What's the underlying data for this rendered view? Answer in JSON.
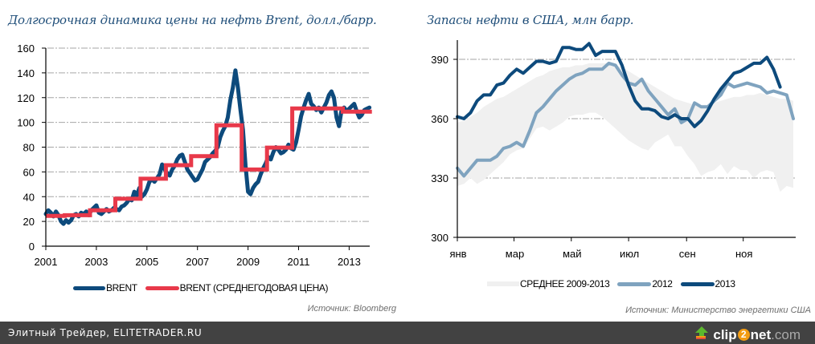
{
  "colors": {
    "brent": "#0d4a7c",
    "brent_avg": "#e8394a",
    "y2012": "#7fa3bf",
    "y2013": "#0d4a7c",
    "avg_band": "#f0f0f0",
    "title": "#1f4e79",
    "grid": "#a6a6a6",
    "footer_bg": "#424242"
  },
  "footer": {
    "site_label": "Элитный Трейдер, ELITETRADER.RU",
    "logo": {
      "part1": "clip",
      "part2": "2",
      "part3": "net",
      "part4": ".com",
      "icon": "up-arrow-icon"
    }
  },
  "chart_data": [
    {
      "type": "line",
      "title": "Долгосрочная динамика цены на нефть Brent, долл./барр.",
      "xlabel": "",
      "ylabel": "",
      "ylim": [
        0,
        160
      ],
      "xlim": [
        2001,
        2013.9
      ],
      "yticks": [
        0,
        20,
        40,
        60,
        80,
        100,
        120,
        140,
        160
      ],
      "xticks": [
        "2001",
        "2003",
        "2005",
        "2007",
        "2009",
        "2011",
        "2013"
      ],
      "grid": true,
      "legend_position": "bottom",
      "source": "Источник: Bloomberg",
      "series": [
        {
          "name": "BRENT",
          "x": [
            2001.0,
            2001.1,
            2001.2,
            2001.3,
            2001.4,
            2001.5,
            2001.6,
            2001.7,
            2001.8,
            2001.9,
            2002.0,
            2002.1,
            2002.2,
            2002.3,
            2002.4,
            2002.5,
            2002.6,
            2002.7,
            2002.8,
            2002.9,
            2003.0,
            2003.1,
            2003.2,
            2003.3,
            2003.4,
            2003.5,
            2003.6,
            2003.7,
            2003.8,
            2003.9,
            2004.0,
            2004.1,
            2004.2,
            2004.3,
            2004.4,
            2004.5,
            2004.6,
            2004.7,
            2004.8,
            2004.9,
            2005.0,
            2005.1,
            2005.2,
            2005.3,
            2005.4,
            2005.5,
            2005.6,
            2005.7,
            2005.8,
            2005.9,
            2006.0,
            2006.1,
            2006.2,
            2006.3,
            2006.4,
            2006.5,
            2006.6,
            2006.7,
            2006.8,
            2006.9,
            2007.0,
            2007.1,
            2007.2,
            2007.3,
            2007.4,
            2007.5,
            2007.6,
            2007.7,
            2007.8,
            2007.9,
            2008.0,
            2008.1,
            2008.2,
            2008.3,
            2008.4,
            2008.5,
            2008.6,
            2008.7,
            2008.8,
            2008.9,
            2009.0,
            2009.1,
            2009.2,
            2009.3,
            2009.4,
            2009.5,
            2009.6,
            2009.7,
            2009.8,
            2009.9,
            2010.0,
            2010.1,
            2010.2,
            2010.3,
            2010.4,
            2010.5,
            2010.6,
            2010.7,
            2010.8,
            2010.9,
            2011.0,
            2011.1,
            2011.2,
            2011.3,
            2011.4,
            2011.5,
            2011.6,
            2011.7,
            2011.8,
            2011.9,
            2012.0,
            2012.1,
            2012.2,
            2012.3,
            2012.4,
            2012.5,
            2012.6,
            2012.7,
            2012.8,
            2012.9,
            2013.0,
            2013.1,
            2013.2,
            2013.3,
            2013.4,
            2013.5,
            2013.6,
            2013.7,
            2013.8
          ],
          "values": [
            26,
            29,
            27,
            24,
            28,
            25,
            20,
            18,
            21,
            19,
            21,
            25,
            26,
            24,
            27,
            26,
            28,
            25,
            29,
            31,
            33,
            27,
            26,
            28,
            30,
            28,
            29,
            31,
            30,
            29,
            32,
            33,
            35,
            38,
            37,
            44,
            41,
            47,
            40,
            42,
            46,
            52,
            54,
            52,
            55,
            58,
            66,
            62,
            59,
            57,
            62,
            65,
            70,
            73,
            74,
            68,
            62,
            59,
            56,
            53,
            54,
            58,
            62,
            68,
            70,
            72,
            75,
            77,
            80,
            88,
            93,
            97,
            104,
            118,
            128,
            142,
            128,
            110,
            94,
            65,
            44,
            42,
            47,
            50,
            52,
            58,
            63,
            67,
            72,
            70,
            76,
            80,
            78,
            75,
            76,
            78,
            82,
            79,
            78,
            84,
            94,
            105,
            112,
            118,
            123,
            115,
            113,
            110,
            112,
            108,
            112,
            116,
            122,
            125,
            120,
            104,
            97,
            110,
            112,
            109,
            111,
            113,
            115,
            109,
            104,
            106,
            110,
            111,
            112
          ],
          "color": "#0d4a7c"
        },
        {
          "name": "BRENT (СРЕДНЕГОДОВАЯ ЦЕНА)",
          "step_x": [
            2001,
            2001.75,
            2002.75,
            2003.75,
            2004.75,
            2005.75,
            2006.75,
            2007.75,
            2008.75,
            2009.75,
            2010.75,
            2012.75,
            2013.9
          ],
          "values": [
            24.5,
            25,
            29,
            38.3,
            54.5,
            65.4,
            72.7,
            97.7,
            61.9,
            79.6,
            111.3,
            108.7
          ],
          "color": "#e8394a"
        }
      ]
    },
    {
      "type": "line",
      "title": "Запасы нефти в США, млн барр.",
      "xlabel": "",
      "ylabel": "",
      "ylim": [
        300,
        400
      ],
      "yticks": [
        300,
        330,
        360,
        390
      ],
      "xticks": [
        "янв",
        "мар",
        "май",
        "июл",
        "сен",
        "ноя"
      ],
      "x_unit": "week of year",
      "xlim": [
        0,
        52
      ],
      "grid": true,
      "legend_position": "bottom",
      "source": "Источник: Министерство энергетики США",
      "series": [
        {
          "name": "СРЕДНЕЕ 2009-2013",
          "kind": "range-band",
          "upper": [
            358,
            359,
            361,
            363,
            366,
            368,
            370,
            371,
            373,
            375,
            377,
            379,
            381,
            382,
            384,
            385,
            386,
            386,
            387,
            387,
            388,
            388,
            388,
            388,
            387,
            386,
            384,
            382,
            380,
            378,
            376,
            374,
            372,
            370,
            369,
            368,
            367,
            367,
            367,
            368,
            369,
            370,
            371,
            371,
            372,
            372,
            373,
            372,
            371,
            370,
            370,
            369
          ],
          "lower": [
            326,
            327,
            330,
            327,
            329,
            332,
            335,
            338,
            342,
            344,
            345,
            350,
            355,
            356,
            354,
            356,
            358,
            361,
            362,
            362,
            363,
            363,
            361,
            358,
            355,
            352,
            349,
            347,
            345,
            344,
            348,
            350,
            352,
            346,
            346,
            341,
            337,
            331,
            333,
            334,
            337,
            332,
            336,
            334,
            334,
            330,
            333,
            334,
            333,
            323,
            326,
            325
          ],
          "color": "#f0f0f0"
        },
        {
          "name": "2012",
          "values": [
            335,
            331,
            335,
            339,
            339,
            339,
            341,
            345,
            346,
            348,
            346,
            354,
            363,
            366,
            370,
            374,
            377,
            380,
            382,
            383,
            385,
            385,
            385,
            388,
            387,
            382,
            378,
            377,
            380,
            374,
            370,
            366,
            362,
            365,
            358,
            360,
            368,
            366,
            366,
            369,
            372,
            378,
            376,
            377,
            378,
            377,
            376,
            373,
            374,
            373,
            372,
            360
          ],
          "color": "#7fa3bf"
        },
        {
          "name": "2013",
          "values": [
            361,
            360,
            363,
            369,
            372,
            372,
            377,
            378,
            382,
            385,
            383,
            386,
            389,
            389,
            388,
            389,
            396,
            396,
            395,
            395,
            398,
            392,
            394,
            394,
            394,
            387,
            377,
            369,
            365,
            365,
            364,
            361,
            360,
            362,
            360,
            360,
            356,
            359,
            364,
            370,
            375,
            379,
            383,
            384,
            386,
            388,
            388,
            391,
            385,
            376
          ],
          "color": "#0d4a7c"
        }
      ]
    }
  ],
  "left": {
    "title": "Долгосрочная динамика цены на нефть Brent, долл./барр.",
    "legend": [
      "BRENT",
      "BRENT (СРЕДНЕГОДОВАЯ ЦЕНА)"
    ],
    "source": "Источник: Bloomberg"
  },
  "right": {
    "title": "Запасы нефти в США, млн барр.",
    "legend": [
      "СРЕДНЕЕ 2009-2013",
      "2012",
      "2013"
    ],
    "source": "Источник: Министерство энергетики США"
  }
}
